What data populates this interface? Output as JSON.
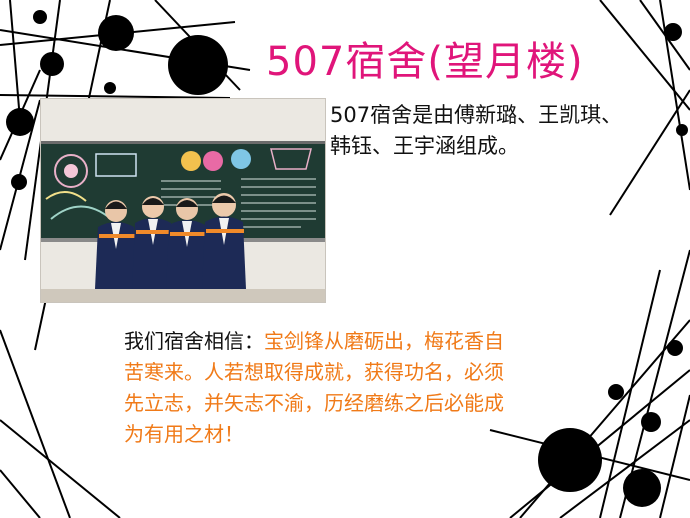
{
  "slide": {
    "title": "507宿舍(望月楼)",
    "intro": "507宿舍是由傅新璐、王凯琪、韩钰、王宇涵组成。",
    "motto_lead": "我们宿舍相信：",
    "motto_quote": "宝剑锋从磨砺出，梅花香自苦寒来。人若想取得成就，获得功名，必须先立志，并矢志不渝，历经磨练之后必能成为有用之材！"
  },
  "colors": {
    "title": "#e0157a",
    "highlight": "#f07a18",
    "text": "#111111",
    "decor": "#000000"
  }
}
